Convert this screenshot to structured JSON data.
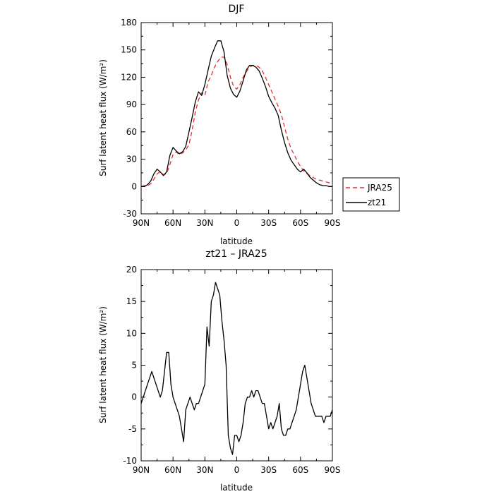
{
  "chart_data": [
    {
      "type": "line",
      "title": "DJF",
      "xlabel": "latitude",
      "ylabel": "Surf latent heat flux (W/m²)",
      "xlim": [
        90,
        -90
      ],
      "ylim": [
        -30,
        180
      ],
      "yticks": [
        -30,
        0,
        30,
        60,
        90,
        120,
        150,
        180
      ],
      "xticks": [
        90,
        60,
        30,
        0,
        -30,
        -60,
        -90
      ],
      "xtick_labels": [
        "90N",
        "60N",
        "30N",
        "0",
        "30S",
        "60S",
        "90S"
      ],
      "legend_position": "right",
      "legend": [
        "JRA25",
        "zt21"
      ],
      "series": [
        {
          "name": "JRA25",
          "color": "#e03030",
          "dash": "dashed",
          "x": [
            90,
            87,
            84,
            81,
            78,
            75,
            72,
            69,
            66,
            63,
            60,
            57,
            54,
            51,
            48,
            45,
            42,
            39,
            36,
            33,
            30,
            27,
            24,
            21,
            18,
            15,
            12,
            9,
            6,
            3,
            0,
            -3,
            -6,
            -9,
            -12,
            -15,
            -18,
            -21,
            -24,
            -27,
            -30,
            -33,
            -36,
            -39,
            -42,
            -45,
            -48,
            -51,
            -54,
            -57,
            -60,
            -63,
            -66,
            -69,
            -72,
            -75,
            -78,
            -81,
            -84,
            -87,
            -90
          ],
          "y": [
            0,
            1,
            1,
            3,
            8,
            14,
            16,
            13,
            14,
            24,
            35,
            38,
            35,
            37,
            40,
            46,
            62,
            82,
            95,
            103,
            100,
            115,
            122,
            131,
            137,
            142,
            142,
            134,
            120,
            110,
            107,
            112,
            120,
            126,
            131,
            133,
            133,
            131,
            127,
            120,
            112,
            104,
            96,
            88,
            79,
            65,
            52,
            42,
            35,
            28,
            22,
            17,
            14,
            12,
            10,
            8,
            7,
            6,
            5,
            4,
            2
          ]
        },
        {
          "name": "zt21",
          "color": "#000000",
          "dash": "solid",
          "x": [
            90,
            87,
            84,
            81,
            78,
            75,
            72,
            69,
            66,
            63,
            60,
            57,
            54,
            51,
            48,
            45,
            42,
            39,
            36,
            33,
            30,
            27,
            24,
            21,
            18,
            15,
            12,
            9,
            6,
            3,
            0,
            -3,
            -6,
            -9,
            -12,
            -15,
            -18,
            -21,
            -24,
            -27,
            -30,
            -33,
            -36,
            -39,
            -42,
            -45,
            -48,
            -51,
            -54,
            -57,
            -60,
            -63,
            -66,
            -69,
            -72,
            -75,
            -78,
            -81,
            -84,
            -87,
            -90
          ],
          "y": [
            0,
            0,
            2,
            6,
            14,
            19,
            16,
            12,
            16,
            34,
            43,
            39,
            36,
            38,
            44,
            60,
            76,
            93,
            104,
            100,
            112,
            128,
            143,
            152,
            160,
            160,
            148,
            122,
            108,
            101,
            98,
            105,
            116,
            128,
            133,
            133,
            131,
            127,
            119,
            110,
            99,
            92,
            86,
            78,
            62,
            48,
            37,
            29,
            24,
            19,
            16,
            19,
            15,
            10,
            7,
            4,
            2,
            1,
            1,
            0,
            0
          ]
        }
      ]
    },
    {
      "type": "line",
      "title": "zt21 – JRA25",
      "xlabel": "latitude",
      "ylabel": "Surf latent heat flux (W/m²)",
      "xlim": [
        90,
        -90
      ],
      "ylim": [
        -10,
        20
      ],
      "yticks": [
        -10,
        -5,
        0,
        5,
        10,
        15,
        20
      ],
      "xticks": [
        90,
        60,
        30,
        0,
        -30,
        -60,
        -90
      ],
      "xtick_labels": [
        "90N",
        "60N",
        "30N",
        "0",
        "30S",
        "60S",
        "90S"
      ],
      "series": [
        {
          "color": "#000000",
          "dash": "solid",
          "x": [
            90,
            88,
            86,
            84,
            82,
            80,
            78,
            76,
            74,
            72,
            70,
            68,
            66,
            64,
            62,
            60,
            58,
            56,
            54,
            52,
            50,
            48,
            46,
            44,
            42,
            40,
            38,
            36,
            34,
            32,
            30,
            28,
            26,
            24,
            22,
            20,
            18,
            16,
            14,
            12,
            10,
            8,
            6,
            4,
            2,
            0,
            -2,
            -4,
            -6,
            -8,
            -10,
            -12,
            -14,
            -16,
            -18,
            -20,
            -22,
            -24,
            -26,
            -28,
            -30,
            -32,
            -34,
            -36,
            -38,
            -40,
            -42,
            -44,
            -46,
            -48,
            -50,
            -52,
            -54,
            -56,
            -58,
            -60,
            -62,
            -64,
            -66,
            -68,
            -70,
            -72,
            -74,
            -76,
            -78,
            -80,
            -82,
            -84,
            -86,
            -88,
            -90
          ],
          "y": [
            -1,
            0,
            1,
            2,
            3,
            4,
            3,
            2,
            1,
            0,
            1,
            4,
            7,
            7,
            2,
            0,
            -1,
            -2,
            -3,
            -5,
            -7,
            -2,
            -1,
            0,
            -1,
            -2,
            -1,
            -1,
            0,
            1,
            2,
            11,
            8,
            15,
            16,
            18,
            17,
            16,
            12,
            9,
            5,
            -6,
            -8,
            -9,
            -6,
            -6,
            -7,
            -6,
            -4,
            -1,
            0,
            0,
            1,
            0,
            1,
            1,
            0,
            -1,
            -1,
            -3,
            -5,
            -4,
            -5,
            -4,
            -3,
            -1,
            -5,
            -6,
            -6,
            -5,
            -5,
            -4,
            -3,
            -2,
            0,
            2,
            4,
            5,
            3,
            1,
            -1,
            -2,
            -3,
            -3,
            -3,
            -3,
            -4,
            -3,
            -3,
            -3,
            -2
          ]
        }
      ]
    }
  ]
}
